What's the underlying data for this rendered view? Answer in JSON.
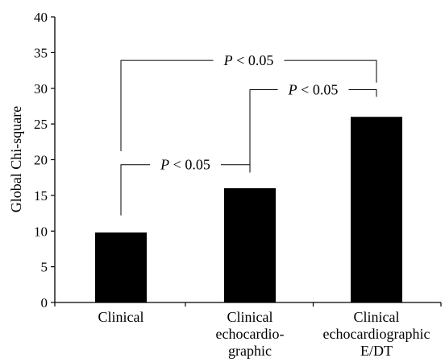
{
  "chart_data": {
    "type": "bar",
    "categories": [
      [
        "Clinical"
      ],
      [
        "Clinical",
        "echocardio-",
        "graphic"
      ],
      [
        "Clinical",
        "echocardiographic",
        "E/DT"
      ]
    ],
    "values": [
      9.8,
      16,
      26
    ],
    "ylabel": "Global Chi-square",
    "ylim": [
      0,
      40
    ],
    "yticks": [
      0,
      5,
      10,
      15,
      20,
      25,
      30,
      35,
      40
    ],
    "bar_color": "#000000",
    "grid": false,
    "annotations": [
      {
        "from": 0,
        "to": 1,
        "label_p": "P",
        "label_rest": " < 0.05"
      },
      {
        "from": 1,
        "to": 2,
        "label_p": "P",
        "label_rest": " < 0.05"
      },
      {
        "from": 0,
        "to": 2,
        "label_p": "P",
        "label_rest": " < 0.05"
      }
    ]
  }
}
